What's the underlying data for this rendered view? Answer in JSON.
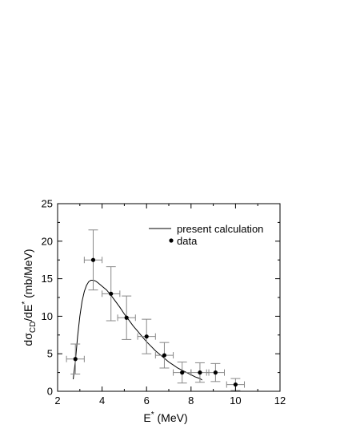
{
  "chart_data": {
    "type": "scatter",
    "title": "",
    "xlabel": {
      "main": "E",
      "sup": "*",
      "unit": " (MeV)"
    },
    "ylabel": {
      "pre": "dσ",
      "sub": "CD",
      "mid": "/dE",
      "sup": "*",
      "unit": " (mb/MeV)"
    },
    "xlim": [
      2,
      12
    ],
    "ylim": [
      0,
      25
    ],
    "xticks": [
      2,
      4,
      6,
      8,
      10,
      12
    ],
    "yticks": [
      0,
      5,
      10,
      15,
      20,
      25
    ],
    "legend_position": "top-right",
    "series": [
      {
        "name": "present calculation",
        "kind": "line",
        "color": "#000000",
        "x": [
          2.7,
          2.8,
          2.9,
          3.0,
          3.1,
          3.2,
          3.3,
          3.4,
          3.5,
          3.6,
          3.7,
          3.8,
          4.0,
          4.2,
          4.4,
          4.6,
          4.8,
          5.0,
          5.2,
          5.4,
          5.6,
          5.8,
          6.0,
          6.2,
          6.4,
          6.6,
          6.8,
          7.0,
          7.2,
          7.4,
          7.6,
          7.8,
          8.0,
          8.2,
          8.4,
          8.5
        ],
        "y": [
          1.6,
          4.0,
          7.3,
          10.0,
          12.0,
          13.3,
          14.1,
          14.6,
          14.8,
          14.8,
          14.7,
          14.5,
          14.0,
          13.5,
          12.8,
          12.0,
          11.2,
          10.3,
          9.5,
          8.7,
          8.0,
          7.3,
          6.6,
          6.0,
          5.4,
          4.9,
          4.4,
          3.9,
          3.5,
          3.1,
          2.8,
          2.5,
          2.2,
          1.9,
          1.7,
          1.5
        ]
      },
      {
        "name": "data",
        "kind": "points",
        "color": "#000000",
        "errorbar_color": "#888888",
        "points": [
          {
            "x": 2.8,
            "y": 4.3,
            "xerr": 0.4,
            "ylow": 2.3,
            "yhigh": 6.3
          },
          {
            "x": 3.6,
            "y": 17.5,
            "xerr": 0.4,
            "ylow": 13.5,
            "yhigh": 21.5
          },
          {
            "x": 4.4,
            "y": 13.0,
            "xerr": 0.4,
            "ylow": 9.4,
            "yhigh": 16.6
          },
          {
            "x": 5.1,
            "y": 9.8,
            "xerr": 0.4,
            "ylow": 6.9,
            "yhigh": 12.7
          },
          {
            "x": 6.0,
            "y": 7.3,
            "xerr": 0.4,
            "ylow": 5.0,
            "yhigh": 9.6
          },
          {
            "x": 6.8,
            "y": 4.8,
            "xerr": 0.4,
            "ylow": 3.1,
            "yhigh": 6.5
          },
          {
            "x": 7.6,
            "y": 2.5,
            "xerr": 0.4,
            "ylow": 1.1,
            "yhigh": 3.9
          },
          {
            "x": 8.4,
            "y": 2.5,
            "xerr": 0.4,
            "ylow": 1.2,
            "yhigh": 3.8
          },
          {
            "x": 9.1,
            "y": 2.5,
            "xerr": 0.4,
            "ylow": 1.3,
            "yhigh": 3.7
          },
          {
            "x": 10.0,
            "y": 0.9,
            "xerr": 0.4,
            "ylow": 0.1,
            "yhigh": 1.7
          }
        ]
      }
    ]
  }
}
